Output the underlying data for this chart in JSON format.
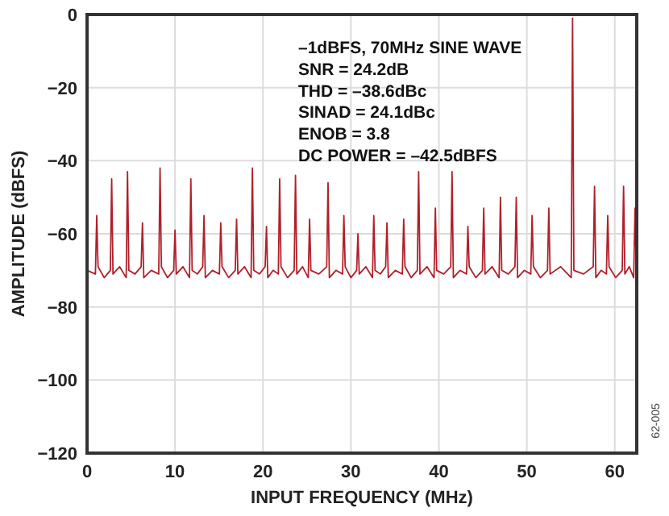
{
  "chart_data": {
    "type": "line",
    "xlabel": "INPUT FREQUENCY (MHz)",
    "ylabel": "AMPLITUDE (dBFS)",
    "annotations": [
      "–1dBFS, 70MHz SINE WAVE",
      "SNR = 24.2dB",
      "THD = –38.6dBc",
      "SINAD = 24.1dBc",
      "ENOB = 3.8",
      "DC POWER = –42.5dBFS",
      "62-005"
    ],
    "xlim": [
      0,
      62.5
    ],
    "xticks": [
      0,
      10,
      20,
      30,
      40,
      50,
      60
    ],
    "ylim": [
      -120,
      0
    ],
    "yticks": [
      -120,
      -100,
      -80,
      -60,
      -40,
      -20,
      0
    ],
    "grid": true,
    "line_style": "solid",
    "series": [
      {
        "color": "#b0202a",
        "x": [
          0,
          0.95,
          1.1,
          1.25,
          1.95,
          2.65,
          2.8,
          2.95,
          3.7,
          4.45,
          4.6,
          4.75,
          5.45,
          6.15,
          6.3,
          6.45,
          7.3,
          8.15,
          8.3,
          8.45,
          9.15,
          9.85,
          10.0,
          10.15,
          10.9,
          11.65,
          11.8,
          11.95,
          12.55,
          13.15,
          13.3,
          13.45,
          14.25,
          15.05,
          15.2,
          15.35,
          16.1,
          16.85,
          17.0,
          17.15,
          17.9,
          18.65,
          18.8,
          18.95,
          19.6,
          20.25,
          20.4,
          20.55,
          21.15,
          21.75,
          21.9,
          22.05,
          22.8,
          23.55,
          23.7,
          23.85,
          24.5,
          25.15,
          25.3,
          25.45,
          26.35,
          27.25,
          27.4,
          27.55,
          28.3,
          29.05,
          29.2,
          29.35,
          30.0,
          30.65,
          30.8,
          30.95,
          31.7,
          32.45,
          32.6,
          32.75,
          33.35,
          33.95,
          34.1,
          34.25,
          35.05,
          35.85,
          36.0,
          36.15,
          36.85,
          37.55,
          37.7,
          37.85,
          38.65,
          39.45,
          39.6,
          39.75,
          40.55,
          41.35,
          41.5,
          41.65,
          42.4,
          43.15,
          43.3,
          43.45,
          44.2,
          44.95,
          45.1,
          45.25,
          46.05,
          46.85,
          47.0,
          47.15,
          47.9,
          48.65,
          48.8,
          48.95,
          49.7,
          50.45,
          50.6,
          50.75,
          51.55,
          52.35,
          52.5,
          52.65,
          53.85,
          55.05,
          55.2,
          55.35,
          56.45,
          57.55,
          57.7,
          57.85,
          58.45,
          59.05,
          59.2,
          59.35,
          60.1,
          60.85,
          61.0,
          61.15,
          61.65,
          62.15,
          62.3,
          62.45
        ],
        "values": [
          -70,
          -71,
          -55,
          -69,
          -72,
          -70,
          -45,
          -71,
          -69,
          -72,
          -43,
          -70,
          -71,
          -69,
          -57,
          -72,
          -70,
          -71,
          -42,
          -69,
          -72,
          -70,
          -59,
          -71,
          -69,
          -72,
          -45,
          -70,
          -71,
          -69,
          -55,
          -72,
          -70,
          -71,
          -57,
          -69,
          -72,
          -70,
          -56,
          -71,
          -69,
          -72,
          -42,
          -70,
          -71,
          -69,
          -58,
          -72,
          -70,
          -71,
          -45,
          -69,
          -72,
          -70,
          -44,
          -71,
          -69,
          -72,
          -56,
          -70,
          -71,
          -69,
          -46,
          -72,
          -70,
          -71,
          -55,
          -69,
          -72,
          -70,
          -60,
          -71,
          -69,
          -72,
          -55,
          -70,
          -71,
          -69,
          -57,
          -72,
          -70,
          -71,
          -56,
          -69,
          -72,
          -70,
          -43,
          -71,
          -69,
          -72,
          -53,
          -70,
          -71,
          -69,
          -43,
          -72,
          -70,
          -71,
          -58,
          -69,
          -72,
          -70,
          -53,
          -71,
          -69,
          -72,
          -50,
          -70,
          -71,
          -69,
          -50,
          -72,
          -70,
          -71,
          -55,
          -69,
          -72,
          -70,
          -53,
          -71,
          -69,
          -72,
          -1,
          -70,
          -71,
          -69,
          -47,
          -72,
          -70,
          -71,
          -55,
          -69,
          -72,
          -70,
          -47,
          -71,
          -69,
          -72,
          -53,
          -70
        ]
      }
    ]
  }
}
